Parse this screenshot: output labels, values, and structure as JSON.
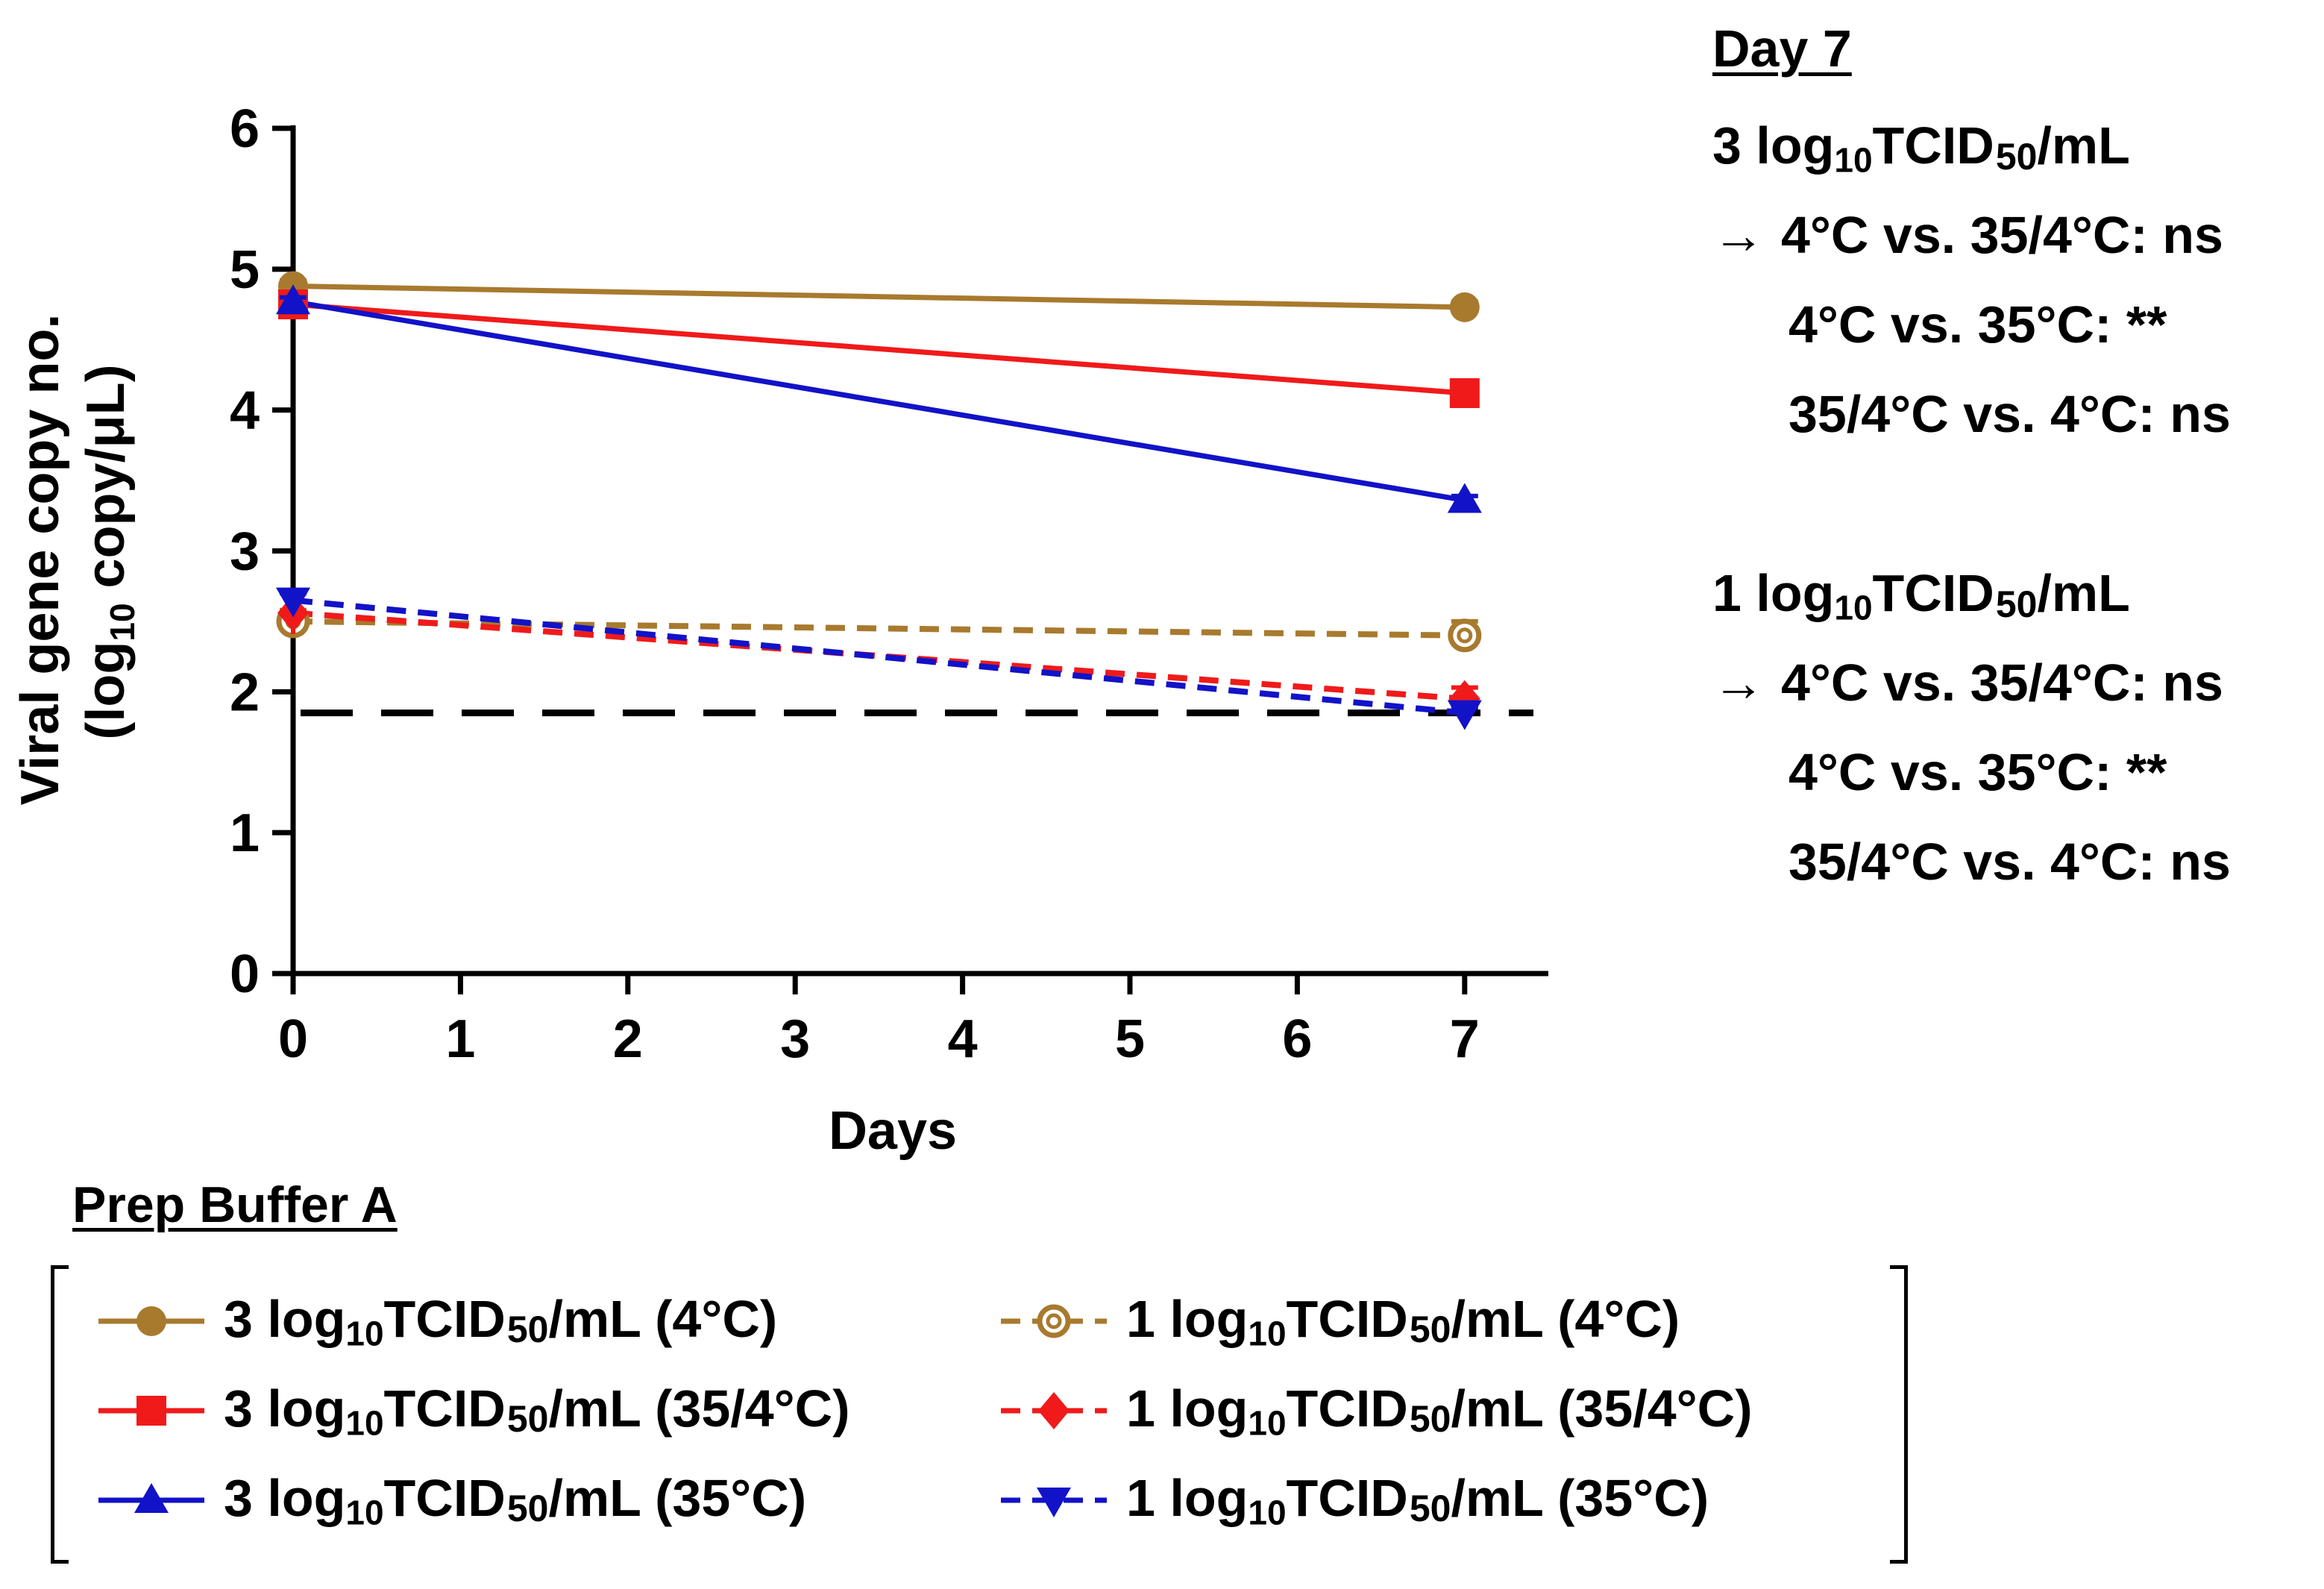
{
  "chart_data": {
    "type": "line",
    "title": "",
    "xlabel": "Days",
    "ylabel_line1": "Viral gene copy no.",
    "ylabel_line2_pre": "(log",
    "ylabel_line2_sub": "10",
    "ylabel_line2_post": " copy/μL)",
    "xlim": [
      0,
      7.5
    ],
    "ylim": [
      0,
      6
    ],
    "xticks": [
      "0",
      "1",
      "2",
      "3",
      "4",
      "5",
      "6",
      "7"
    ],
    "yticks": [
      "0",
      "1",
      "2",
      "3",
      "4",
      "5",
      "6"
    ],
    "x": [
      0,
      7
    ],
    "detection_limit": 1.85,
    "series": [
      {
        "name": "3 log10 TCID50/mL (4°C)",
        "values": [
          4.88,
          4.73
        ],
        "errors": [
          0.04,
          0.04
        ],
        "color": "#A87A2E",
        "marker": "circle",
        "dashed": false,
        "open": false
      },
      {
        "name": "3 log10 TCID50/mL (35/4°C)",
        "values": [
          4.75,
          4.12
        ],
        "errors": [
          0.04,
          0.04
        ],
        "color": "#F01A1A",
        "marker": "square",
        "dashed": false,
        "open": false
      },
      {
        "name": "3 log10 TCID50/mL (35°C)",
        "values": [
          4.77,
          3.36
        ],
        "errors": [
          0.03,
          0.03
        ],
        "color": "#1212C8",
        "marker": "triangle-up",
        "dashed": false,
        "open": false
      },
      {
        "name": "1 log10 TCID50/mL (4°C)",
        "values": [
          2.5,
          2.4
        ],
        "errors": [
          0.08,
          0.1
        ],
        "color": "#A87A2E",
        "marker": "circle-open",
        "dashed": true,
        "open": true
      },
      {
        "name": "1 log10 TCID50/mL (35/4°C)",
        "values": [
          2.56,
          1.95
        ],
        "errors": [
          0.15,
          0.08
        ],
        "color": "#F01A1A",
        "marker": "diamond",
        "dashed": true,
        "open": false
      },
      {
        "name": "1 log10 TCID50/mL (35°C)",
        "values": [
          2.65,
          1.85
        ],
        "errors": [
          0.05,
          0.04
        ],
        "color": "#1212C8",
        "marker": "triangle-down",
        "dashed": true,
        "open": false
      }
    ]
  },
  "annotations": {
    "heading": "Day 7",
    "group1": {
      "conc_pre": "3 log",
      "conc_sub": "10",
      "conc_mid": "TCID",
      "conc_sub2": "50",
      "conc_post": "/mL",
      "arrow": "→",
      "line1": "4°C vs. 35/4°C: ns",
      "line2": "4°C vs. 35°C: **",
      "line3": "35/4°C vs. 4°C: ns"
    },
    "group2": {
      "conc_pre": "1 log",
      "conc_sub": "10",
      "conc_mid": "TCID",
      "conc_sub2": "50",
      "conc_post": "/mL",
      "arrow": "→",
      "line1": "4°C vs. 35/4°C: ns",
      "line2": "4°C vs. 35°C: **",
      "line3": "35/4°C vs. 4°C: ns"
    }
  },
  "legend": {
    "title": "Prep Buffer A",
    "items": [
      {
        "pre": "3 log",
        "sub": "10",
        "mid": "TCID",
        "sub2": "50",
        "post": "/mL (4°C)"
      },
      {
        "pre": "3 log",
        "sub": "10",
        "mid": "TCID",
        "sub2": "50",
        "post": "/mL (35/4°C)"
      },
      {
        "pre": "3 log",
        "sub": "10",
        "mid": "TCID",
        "sub2": "50",
        "post": "/mL (35°C)"
      },
      {
        "pre": "1 log",
        "sub": "10",
        "mid": "TCID",
        "sub2": "50",
        "post": "/mL (4°C)"
      },
      {
        "pre": "1 log",
        "sub": "10",
        "mid": "TCID",
        "sub2": "50",
        "post": "/mL (35/4°C)"
      },
      {
        "pre": "1 log",
        "sub": "10",
        "mid": "TCID",
        "sub2": "50",
        "post": "/mL (35°C)"
      }
    ]
  }
}
